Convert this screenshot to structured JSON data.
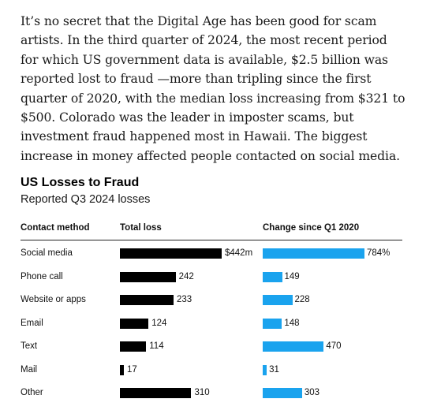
{
  "article": {
    "paragraph": "It’s no secret that the Digital Age has been good for scam artists. In the third quarter of 2024, the most recent period for which US government data is available, $2.5 billion was reported lost to fraud —more than tripling since the first quarter of 2020, with the median loss increasing from $321 to $500. Colorado was the leader in imposter scams, but investment fraud happened most in Hawaii. The biggest increase in money affected people contacted on social media."
  },
  "chart_data": {
    "type": "bar",
    "title": "US Losses to Fraud",
    "subtitle": "Reported Q3 2024 losses",
    "columns": [
      "Contact method",
      "Total loss",
      "Change since Q1 2020"
    ],
    "categories": [
      "Social media",
      "Phone call",
      "Website or apps",
      "Email",
      "Text",
      "Mail",
      "Other"
    ],
    "series": [
      {
        "name": "Total loss",
        "values": [
          442,
          242,
          233,
          124,
          114,
          17,
          310
        ],
        "labels": [
          "$442m",
          "242",
          "233",
          "124",
          "114",
          "17",
          "310"
        ],
        "color": "#000000"
      },
      {
        "name": "Change since Q1 2020",
        "values": [
          784,
          149,
          228,
          148,
          470,
          31,
          303
        ],
        "labels": [
          "784%",
          "149",
          "228",
          "148",
          "470",
          "31",
          "303"
        ],
        "color": "#1aa3ee"
      }
    ]
  }
}
